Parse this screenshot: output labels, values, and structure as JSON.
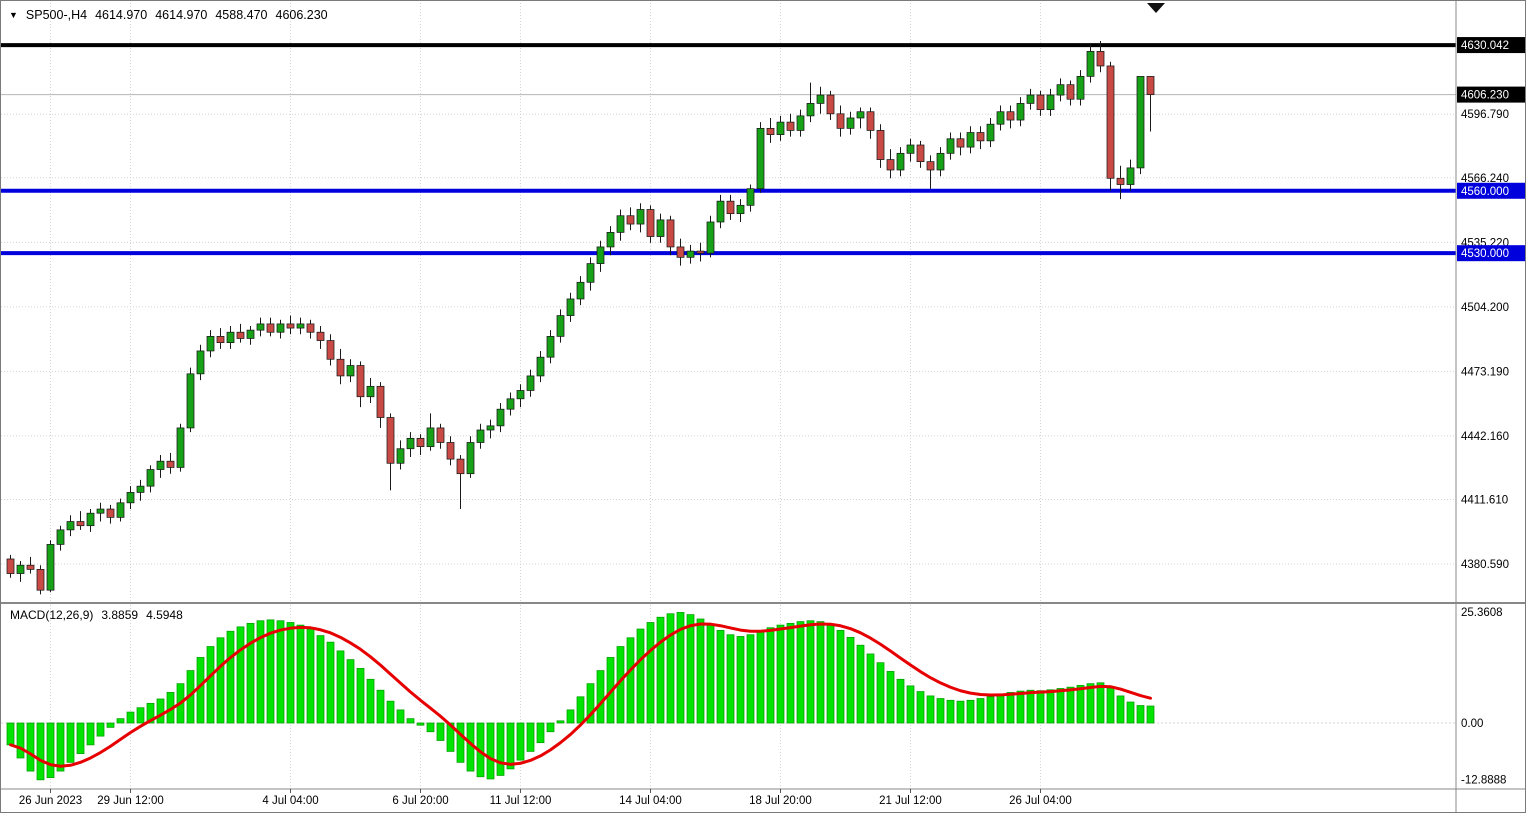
{
  "header": {
    "symbol_period": "SP500-,H4",
    "open": "4614.970",
    "high": "4614.970",
    "low": "4588.470",
    "close": "4606.230"
  },
  "colors": {
    "background": "#ffffff",
    "grid": "#d4d4d4",
    "bull": "#17a117",
    "bear": "#c94a44",
    "wick": "#1a1a1a",
    "candle_border": "#1a1a1a",
    "macd_bar": "#00e300",
    "macd_bar_border": "#009e00",
    "signal_line": "#e60000",
    "level_blue": "#0000dd",
    "level_black": "#000000",
    "axis_text": "#000000",
    "separator": "#888888",
    "current_price_line": "#b4b4b4"
  },
  "chart_data": [
    {
      "type": "candlestick",
      "symbol": "SP500-",
      "timeframe": "H4",
      "ylim": [
        4362.8,
        4634.4
      ],
      "y_ticks": [
        {
          "value": 4596.79,
          "label": "4596.790"
        },
        {
          "value": 4566.24,
          "label": "4566.240"
        },
        {
          "value": 4535.22,
          "label": "4535.220"
        },
        {
          "value": 4504.2,
          "label": "4504.200"
        },
        {
          "value": 4473.19,
          "label": "4473.190"
        },
        {
          "value": 4442.16,
          "label": "4442.160"
        },
        {
          "value": 4411.61,
          "label": "4411.610"
        },
        {
          "value": 4380.59,
          "label": "4380.590"
        }
      ],
      "badges": [
        {
          "value": 4630.042,
          "label": "4630.042",
          "bg": "#000000"
        },
        {
          "value": 4606.23,
          "label": "4606.230",
          "bg": "#000000"
        },
        {
          "value": 4560.0,
          "label": "4560.000",
          "bg": "#0000dd"
        },
        {
          "value": 4530.0,
          "label": "4530.000",
          "bg": "#0000dd"
        }
      ],
      "hlines": [
        {
          "value": 4630.042,
          "color": "#000000",
          "width": 4
        },
        {
          "value": 4560.0,
          "color": "#0000dd",
          "width": 4
        },
        {
          "value": 4530.0,
          "color": "#0000dd",
          "width": 4
        }
      ],
      "current_price": {
        "value": 4606.23,
        "label": "4606.230"
      },
      "x_ticks": [
        {
          "index": 4,
          "label": "26 Jun 2023"
        },
        {
          "index": 12,
          "label": "29 Jun 12:00"
        },
        {
          "index": 28,
          "label": "4 Jul 04:00"
        },
        {
          "index": 41,
          "label": "6 Jul 20:00"
        },
        {
          "index": 51,
          "label": "11 Jul 12:00"
        },
        {
          "index": 64,
          "label": "14 Jul 04:00"
        },
        {
          "index": 77,
          "label": "18 Jul 20:00"
        },
        {
          "index": 90,
          "label": "21 Jul 12:00"
        },
        {
          "index": 103,
          "label": "26 Jul 04:00"
        }
      ],
      "candles": [
        [
          4383,
          4385,
          4374,
          4376
        ],
        [
          4376,
          4382,
          4372,
          4380
        ],
        [
          4380,
          4384,
          4376,
          4378
        ],
        [
          4378,
          4380,
          4366,
          4368
        ],
        [
          4368,
          4392,
          4367,
          4390
        ],
        [
          4390,
          4399,
          4387,
          4397
        ],
        [
          4397,
          4404,
          4394,
          4401
        ],
        [
          4401,
          4406,
          4397,
          4399
        ],
        [
          4399,
          4407,
          4396,
          4405
        ],
        [
          4405,
          4410,
          4401,
          4407
        ],
        [
          4407,
          4409,
          4400,
          4403
        ],
        [
          4403,
          4412,
          4401,
          4410
        ],
        [
          4410,
          4418,
          4407,
          4415
        ],
        [
          4415,
          4421,
          4411,
          4418
        ],
        [
          4418,
          4428,
          4415,
          4426
        ],
        [
          4426,
          4433,
          4422,
          4430
        ],
        [
          4430,
          4434,
          4424,
          4427
        ],
        [
          4427,
          4448,
          4425,
          4446
        ],
        [
          4446,
          4475,
          4444,
          4472
        ],
        [
          4472,
          4486,
          4469,
          4483
        ],
        [
          4483,
          4493,
          4480,
          4490
        ],
        [
          4490,
          4494,
          4484,
          4487
        ],
        [
          4487,
          4495,
          4484,
          4492
        ],
        [
          4492,
          4496,
          4487,
          4489
        ],
        [
          4489,
          4495,
          4486,
          4493
        ],
        [
          4493,
          4499,
          4490,
          4496
        ],
        [
          4496,
          4499,
          4490,
          4492
        ],
        [
          4492,
          4498,
          4489,
          4496
        ],
        [
          4496,
          4500,
          4491,
          4494
        ],
        [
          4494,
          4499,
          4491,
          4496
        ],
        [
          4496,
          4498,
          4489,
          4492
        ],
        [
          4492,
          4495,
          4484,
          4488
        ],
        [
          4488,
          4491,
          4476,
          4479
        ],
        [
          4479,
          4484,
          4467,
          4471
        ],
        [
          4471,
          4479,
          4468,
          4476
        ],
        [
          4476,
          4478,
          4456,
          4461
        ],
        [
          4461,
          4470,
          4458,
          4466
        ],
        [
          4466,
          4468,
          4446,
          4451
        ],
        [
          4451,
          4453,
          4416,
          4429
        ],
        [
          4429,
          4440,
          4426,
          4436
        ],
        [
          4436,
          4444,
          4432,
          4441
        ],
        [
          4441,
          4443,
          4433,
          4437
        ],
        [
          4437,
          4453,
          4435,
          4446
        ],
        [
          4446,
          4448,
          4436,
          4439
        ],
        [
          4439,
          4442,
          4428,
          4431
        ],
        [
          4431,
          4433,
          4407,
          4424
        ],
        [
          4424,
          4442,
          4422,
          4439
        ],
        [
          4439,
          4448,
          4436,
          4445
        ],
        [
          4445,
          4450,
          4441,
          4447
        ],
        [
          4447,
          4458,
          4444,
          4455
        ],
        [
          4455,
          4463,
          4452,
          4460
        ],
        [
          4460,
          4467,
          4456,
          4464
        ],
        [
          4464,
          4474,
          4461,
          4471
        ],
        [
          4471,
          4483,
          4468,
          4480
        ],
        [
          4480,
          4493,
          4477,
          4490
        ],
        [
          4490,
          4503,
          4487,
          4500
        ],
        [
          4500,
          4511,
          4497,
          4508
        ],
        [
          4508,
          4519,
          4505,
          4516
        ],
        [
          4516,
          4528,
          4512,
          4525
        ],
        [
          4525,
          4536,
          4521,
          4533
        ],
        [
          4533,
          4543,
          4529,
          4540
        ],
        [
          4540,
          4551,
          4536,
          4548
        ],
        [
          4548,
          4552,
          4541,
          4544
        ],
        [
          4544,
          4554,
          4540,
          4551
        ],
        [
          4551,
          4553,
          4535,
          4538
        ],
        [
          4538,
          4549,
          4535,
          4546
        ],
        [
          4546,
          4548,
          4529,
          4533
        ],
        [
          4533,
          4537,
          4524,
          4528
        ],
        [
          4528,
          4534,
          4525,
          4531
        ],
        [
          4531,
          4535,
          4526,
          4530
        ],
        [
          4530,
          4548,
          4528,
          4545
        ],
        [
          4545,
          4558,
          4542,
          4555
        ],
        [
          4555,
          4558,
          4546,
          4549
        ],
        [
          4549,
          4556,
          4545,
          4553
        ],
        [
          4553,
          4563,
          4550,
          4561
        ],
        [
          4561,
          4593,
          4559,
          4590
        ],
        [
          4590,
          4595,
          4583,
          4587
        ],
        [
          4587,
          4596,
          4584,
          4593
        ],
        [
          4593,
          4597,
          4586,
          4589
        ],
        [
          4589,
          4599,
          4586,
          4596
        ],
        [
          4596,
          4612,
          4593,
          4602
        ],
        [
          4602,
          4610,
          4597,
          4606
        ],
        [
          4606,
          4608,
          4594,
          4597
        ],
        [
          4597,
          4601,
          4586,
          4590
        ],
        [
          4590,
          4598,
          4587,
          4595
        ],
        [
          4595,
          4600,
          4590,
          4598
        ],
        [
          4598,
          4600,
          4585,
          4589
        ],
        [
          4589,
          4592,
          4571,
          4575
        ],
        [
          4575,
          4580,
          4566,
          4570
        ],
        [
          4570,
          4581,
          4567,
          4578
        ],
        [
          4578,
          4585,
          4574,
          4582
        ],
        [
          4582,
          4584,
          4571,
          4574
        ],
        [
          4574,
          4577,
          4561,
          4570
        ],
        [
          4570,
          4581,
          4567,
          4578
        ],
        [
          4578,
          4588,
          4575,
          4585
        ],
        [
          4585,
          4588,
          4577,
          4581
        ],
        [
          4581,
          4591,
          4578,
          4588
        ],
        [
          4588,
          4591,
          4580,
          4584
        ],
        [
          4584,
          4595,
          4581,
          4592
        ],
        [
          4592,
          4601,
          4589,
          4598
        ],
        [
          4598,
          4601,
          4590,
          4594
        ],
        [
          4594,
          4605,
          4591,
          4602
        ],
        [
          4602,
          4609,
          4599,
          4606
        ],
        [
          4606,
          4608,
          4596,
          4599
        ],
        [
          4599,
          4609,
          4596,
          4606
        ],
        [
          4606,
          4614,
          4603,
          4611
        ],
        [
          4611,
          4613,
          4601,
          4604
        ],
        [
          4604,
          4618,
          4601,
          4615
        ],
        [
          4615,
          4631,
          4612,
          4627
        ],
        [
          4627,
          4632,
          4617,
          4620
        ],
        [
          4620,
          4622,
          4560,
          4566
        ],
        [
          4566,
          4572,
          4556,
          4563
        ],
        [
          4563,
          4575,
          4560,
          4571
        ],
        [
          4571,
          4615,
          4568,
          4614.97
        ],
        [
          4614.97,
          4614.97,
          4588.47,
          4606.23
        ]
      ]
    },
    {
      "type": "bar",
      "name": "MACD(12,26,9)",
      "macd_value": "3.8859",
      "signal_value": "4.5948",
      "ylim": [
        -15.1,
        27.0
      ],
      "y_ticks": [
        {
          "value": 25.3608,
          "label": "25.3608"
        },
        {
          "value": 0,
          "label": "0.00"
        },
        {
          "value": -12.8888,
          "label": "-12.8888"
        }
      ],
      "values": [
        -5,
        -8,
        -11,
        -13,
        -12.5,
        -11,
        -9,
        -7,
        -5,
        -3,
        -1,
        1,
        2.5,
        3.5,
        4.5,
        5.5,
        7,
        9,
        12,
        15,
        17.5,
        19.5,
        21,
        22,
        22.8,
        23.4,
        23.6,
        23.4,
        23,
        22.4,
        21.5,
        20,
        18.5,
        16.5,
        14.5,
        12.5,
        10,
        7.5,
        5,
        3,
        1,
        -0.5,
        -2,
        -4,
        -6.5,
        -9,
        -11,
        -12.3,
        -12.8,
        -12,
        -10.5,
        -8.5,
        -6.5,
        -4.5,
        -2,
        0.5,
        3,
        6,
        9,
        12,
        15,
        17.5,
        19.5,
        21.5,
        23,
        24.2,
        25,
        25.3,
        24.8,
        23.8,
        22.5,
        21.2,
        20.2,
        19.8,
        20.2,
        21,
        21.8,
        22.4,
        22.8,
        23.2,
        23.4,
        23.2,
        22.4,
        21.2,
        19.6,
        17.8,
        15.8,
        13.8,
        11.8,
        10,
        8.5,
        7.2,
        6.2,
        5.6,
        5.2,
        5,
        5.2,
        5.6,
        6,
        6.5,
        7,
        7.3,
        7.5,
        7.4,
        7.6,
        7.9,
        8.2,
        8.6,
        9,
        9.2,
        8,
        6.2,
        4.8,
        4,
        3.8859
      ]
    }
  ]
}
